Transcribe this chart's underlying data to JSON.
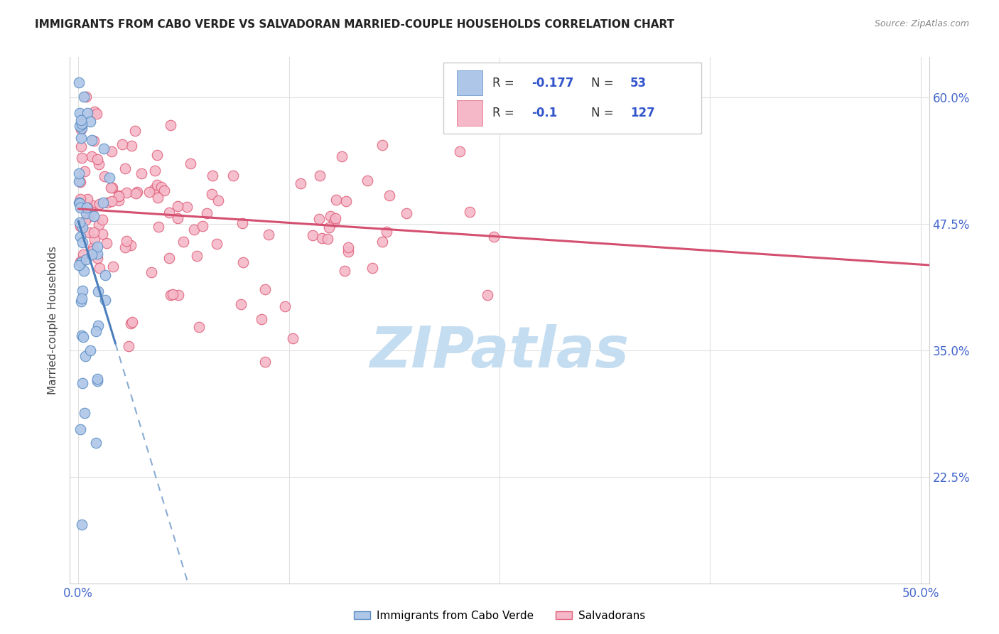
{
  "title": "IMMIGRANTS FROM CABO VERDE VS SALVADORAN MARRIED-COUPLE HOUSEHOLDS CORRELATION CHART",
  "source": "Source: ZipAtlas.com",
  "ylabel": "Married-couple Households",
  "xlim": [
    -0.005,
    0.505
  ],
  "ylim": [
    0.12,
    0.64
  ],
  "ytick_vals": [
    0.225,
    0.35,
    0.475,
    0.6
  ],
  "ytick_labels": [
    "22.5%",
    "35.0%",
    "47.5%",
    "60.0%"
  ],
  "xtick_vals": [
    0.0,
    0.125,
    0.25,
    0.375,
    0.5
  ],
  "xtick_labels": [
    "0.0%",
    "",
    "",
    "",
    "50.0%"
  ],
  "blue_R": -0.177,
  "blue_N": 53,
  "pink_R": -0.1,
  "pink_N": 127,
  "blue_color": "#aec6e8",
  "blue_edge_color": "#5b8ec4",
  "pink_color": "#f4b8c8",
  "pink_edge_color": "#e0607a",
  "blue_line_color": "#4a7fbc",
  "pink_line_color": "#d45070",
  "watermark": "ZIPatlas",
  "watermark_color": "#c5ddf0",
  "background_color": "#ffffff",
  "grid_color": "#e0e0e0",
  "title_color": "#222222",
  "source_color": "#888888",
  "tick_color": "#4466cc",
  "ylabel_color": "#444444"
}
